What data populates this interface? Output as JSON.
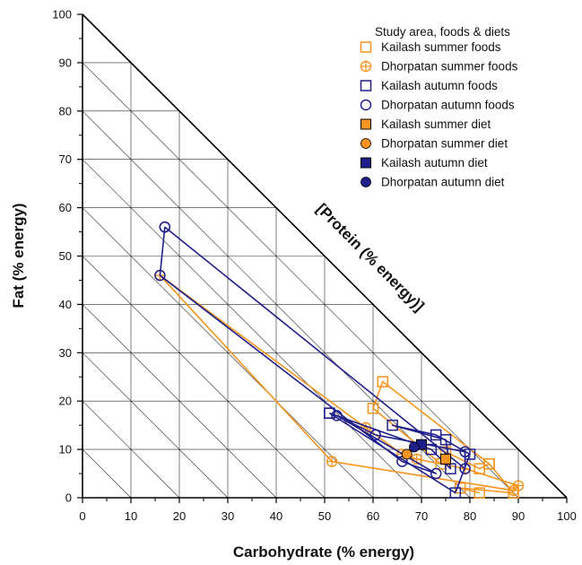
{
  "chart_data": {
    "type": "scatter",
    "subtype": "right-angle mixture triangle",
    "xlabel": "Carbohydrate (% energy)",
    "ylabel": "Fat (% energy)",
    "hypotenuse_label": "[Protein (% energy)]",
    "xlim": [
      0,
      100
    ],
    "ylim": [
      0,
      100
    ],
    "x_ticks": [
      "0",
      "10",
      "20",
      "30",
      "40",
      "50",
      "60",
      "70",
      "80",
      "90",
      "100"
    ],
    "y_ticks": [
      "0",
      "10",
      "20",
      "30",
      "40",
      "50",
      "60",
      "70",
      "80",
      "90",
      "100"
    ],
    "grid": true,
    "legend_title": "Study area, foods & diets",
    "legend_position": "top-right",
    "colors": {
      "orange": "#f7941d",
      "blue": "#1f1f8c"
    },
    "series": [
      {
        "name": "Kailash summer foods",
        "color": "#f7941d",
        "marker": "square-open",
        "connected": true,
        "points": [
          [
            82,
            1
          ],
          [
            78,
            2
          ],
          [
            89,
            1
          ],
          [
            84,
            7
          ],
          [
            62,
            24
          ],
          [
            60,
            18.5
          ],
          [
            74,
            7
          ],
          [
            75,
            9.5
          ],
          [
            82,
            6
          ],
          [
            84,
            7
          ]
        ]
      },
      {
        "name": "Dhorpatan summer foods",
        "color": "#f7941d",
        "marker": "circle-cross",
        "connected": true,
        "points": [
          [
            16,
            46
          ],
          [
            51.5,
            7.5
          ],
          [
            89,
            1.5
          ],
          [
            90,
            2.5
          ],
          [
            79,
            6
          ],
          [
            69,
            8
          ],
          [
            66,
            9
          ],
          [
            58.5,
            14.5
          ],
          [
            16,
            46
          ]
        ]
      },
      {
        "name": "Kailash autumn foods",
        "color": "#1f1f8c",
        "marker": "square-open",
        "connected": true,
        "points": [
          [
            51,
            17.5
          ],
          [
            77,
            1
          ],
          [
            80,
            9
          ],
          [
            73,
            13
          ],
          [
            64,
            15
          ],
          [
            75,
            12
          ],
          [
            76,
            6
          ],
          [
            72,
            10
          ],
          [
            51,
            17.5
          ]
        ]
      },
      {
        "name": "Dhorpatan autumn foods",
        "color": "#1f1f8c",
        "marker": "circle-open",
        "connected": true,
        "points": [
          [
            17,
            56
          ],
          [
            79,
            6
          ],
          [
            79,
            9.5
          ],
          [
            60.5,
            13
          ],
          [
            52.5,
            17
          ],
          [
            73,
            5
          ],
          [
            66,
            7.5
          ],
          [
            16,
            46
          ],
          [
            17,
            56
          ]
        ]
      },
      {
        "name": "Kailash summer diet",
        "color": "#f7941d",
        "marker": "square-filled",
        "connected": false,
        "points": [
          [
            75,
            8
          ]
        ]
      },
      {
        "name": "Dhorpatan summer diet",
        "color": "#f7941d",
        "marker": "circle-filled",
        "connected": false,
        "points": [
          [
            67,
            9
          ]
        ]
      },
      {
        "name": "Kailash autumn diet",
        "color": "#1f1f8c",
        "marker": "square-filled",
        "connected": false,
        "points": [
          [
            70,
            11
          ]
        ]
      },
      {
        "name": "Dhorpatan autumn diet",
        "color": "#1f1f8c",
        "marker": "circle-filled",
        "connected": false,
        "points": [
          [
            68.5,
            10.5
          ]
        ]
      }
    ]
  }
}
